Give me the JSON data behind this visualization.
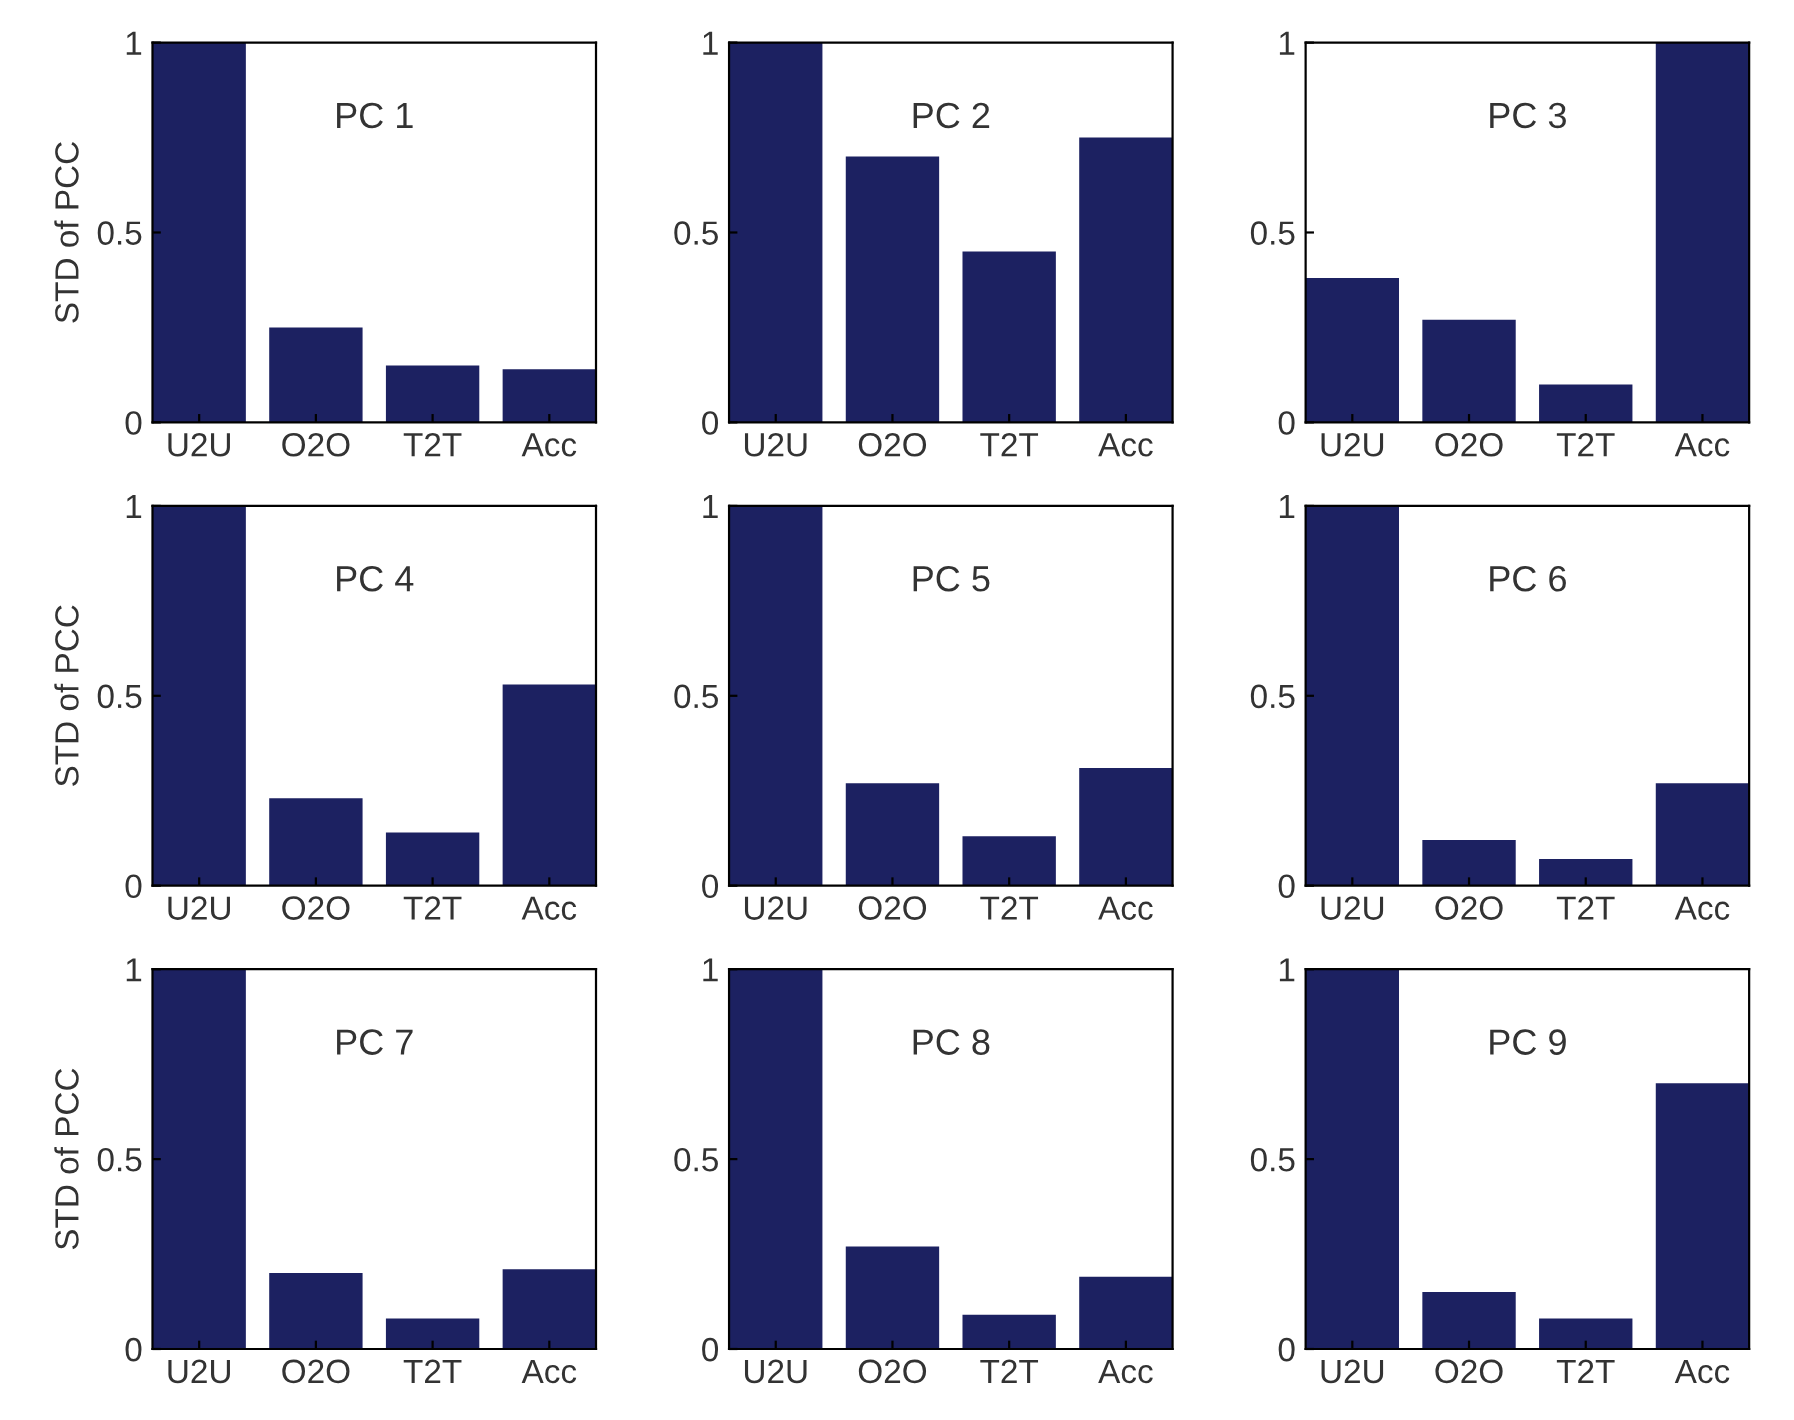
{
  "chart_data": [
    {
      "type": "bar",
      "title": "PC 1",
      "ylabel": "STD of PCC",
      "categories": [
        "U2U",
        "O2O",
        "T2T",
        "Acc"
      ],
      "values": [
        1,
        0.25,
        0.15,
        0.14
      ],
      "color": "#1c2161",
      "ylim": [
        0,
        1
      ],
      "yticks": [
        0,
        0.5,
        1
      ],
      "grid": false
    },
    {
      "type": "bar",
      "title": "PC 2",
      "categories": [
        "U2U",
        "O2O",
        "T2T",
        "Acc"
      ],
      "values": [
        1,
        0.7,
        0.45,
        0.75
      ],
      "color": "#1c2161",
      "ylim": [
        0,
        1
      ],
      "yticks": [
        0,
        0.5,
        1
      ],
      "grid": false
    },
    {
      "type": "bar",
      "title": "PC 3",
      "categories": [
        "U2U",
        "O2O",
        "T2T",
        "Acc"
      ],
      "values": [
        0.38,
        0.27,
        0.1,
        1
      ],
      "color": "#1c2161",
      "ylim": [
        0,
        1
      ],
      "yticks": [
        0,
        0.5,
        1
      ],
      "grid": false
    },
    {
      "type": "bar",
      "title": "PC 4",
      "ylabel": "STD of PCC",
      "categories": [
        "U2U",
        "O2O",
        "T2T",
        "Acc"
      ],
      "values": [
        1,
        0.23,
        0.14,
        0.53
      ],
      "color": "#1c2161",
      "ylim": [
        0,
        1
      ],
      "yticks": [
        0,
        0.5,
        1
      ],
      "grid": false
    },
    {
      "type": "bar",
      "title": "PC 5",
      "categories": [
        "U2U",
        "O2O",
        "T2T",
        "Acc"
      ],
      "values": [
        1,
        0.27,
        0.13,
        0.31
      ],
      "color": "#1c2161",
      "ylim": [
        0,
        1
      ],
      "yticks": [
        0,
        0.5,
        1
      ],
      "grid": false
    },
    {
      "type": "bar",
      "title": "PC 6",
      "categories": [
        "U2U",
        "O2O",
        "T2T",
        "Acc"
      ],
      "values": [
        1,
        0.12,
        0.07,
        0.27
      ],
      "color": "#1c2161",
      "ylim": [
        0,
        1
      ],
      "yticks": [
        0,
        0.5,
        1
      ],
      "grid": false
    },
    {
      "type": "bar",
      "title": "PC 7",
      "ylabel": "STD of PCC",
      "categories": [
        "U2U",
        "O2O",
        "T2T",
        "Acc"
      ],
      "values": [
        1,
        0.2,
        0.08,
        0.21
      ],
      "color": "#1c2161",
      "ylim": [
        0,
        1
      ],
      "yticks": [
        0,
        0.5,
        1
      ],
      "grid": false
    },
    {
      "type": "bar",
      "title": "PC 8",
      "categories": [
        "U2U",
        "O2O",
        "T2T",
        "Acc"
      ],
      "values": [
        1,
        0.27,
        0.09,
        0.19
      ],
      "color": "#1c2161",
      "ylim": [
        0,
        1
      ],
      "yticks": [
        0,
        0.5,
        1
      ],
      "grid": false
    },
    {
      "type": "bar",
      "title": "PC 9",
      "categories": [
        "U2U",
        "O2O",
        "T2T",
        "Acc"
      ],
      "values": [
        1,
        0.15,
        0.08,
        0.7
      ],
      "color": "#1c2161",
      "ylim": [
        0,
        1
      ],
      "yticks": [
        0,
        0.5,
        1
      ],
      "grid": false
    }
  ]
}
